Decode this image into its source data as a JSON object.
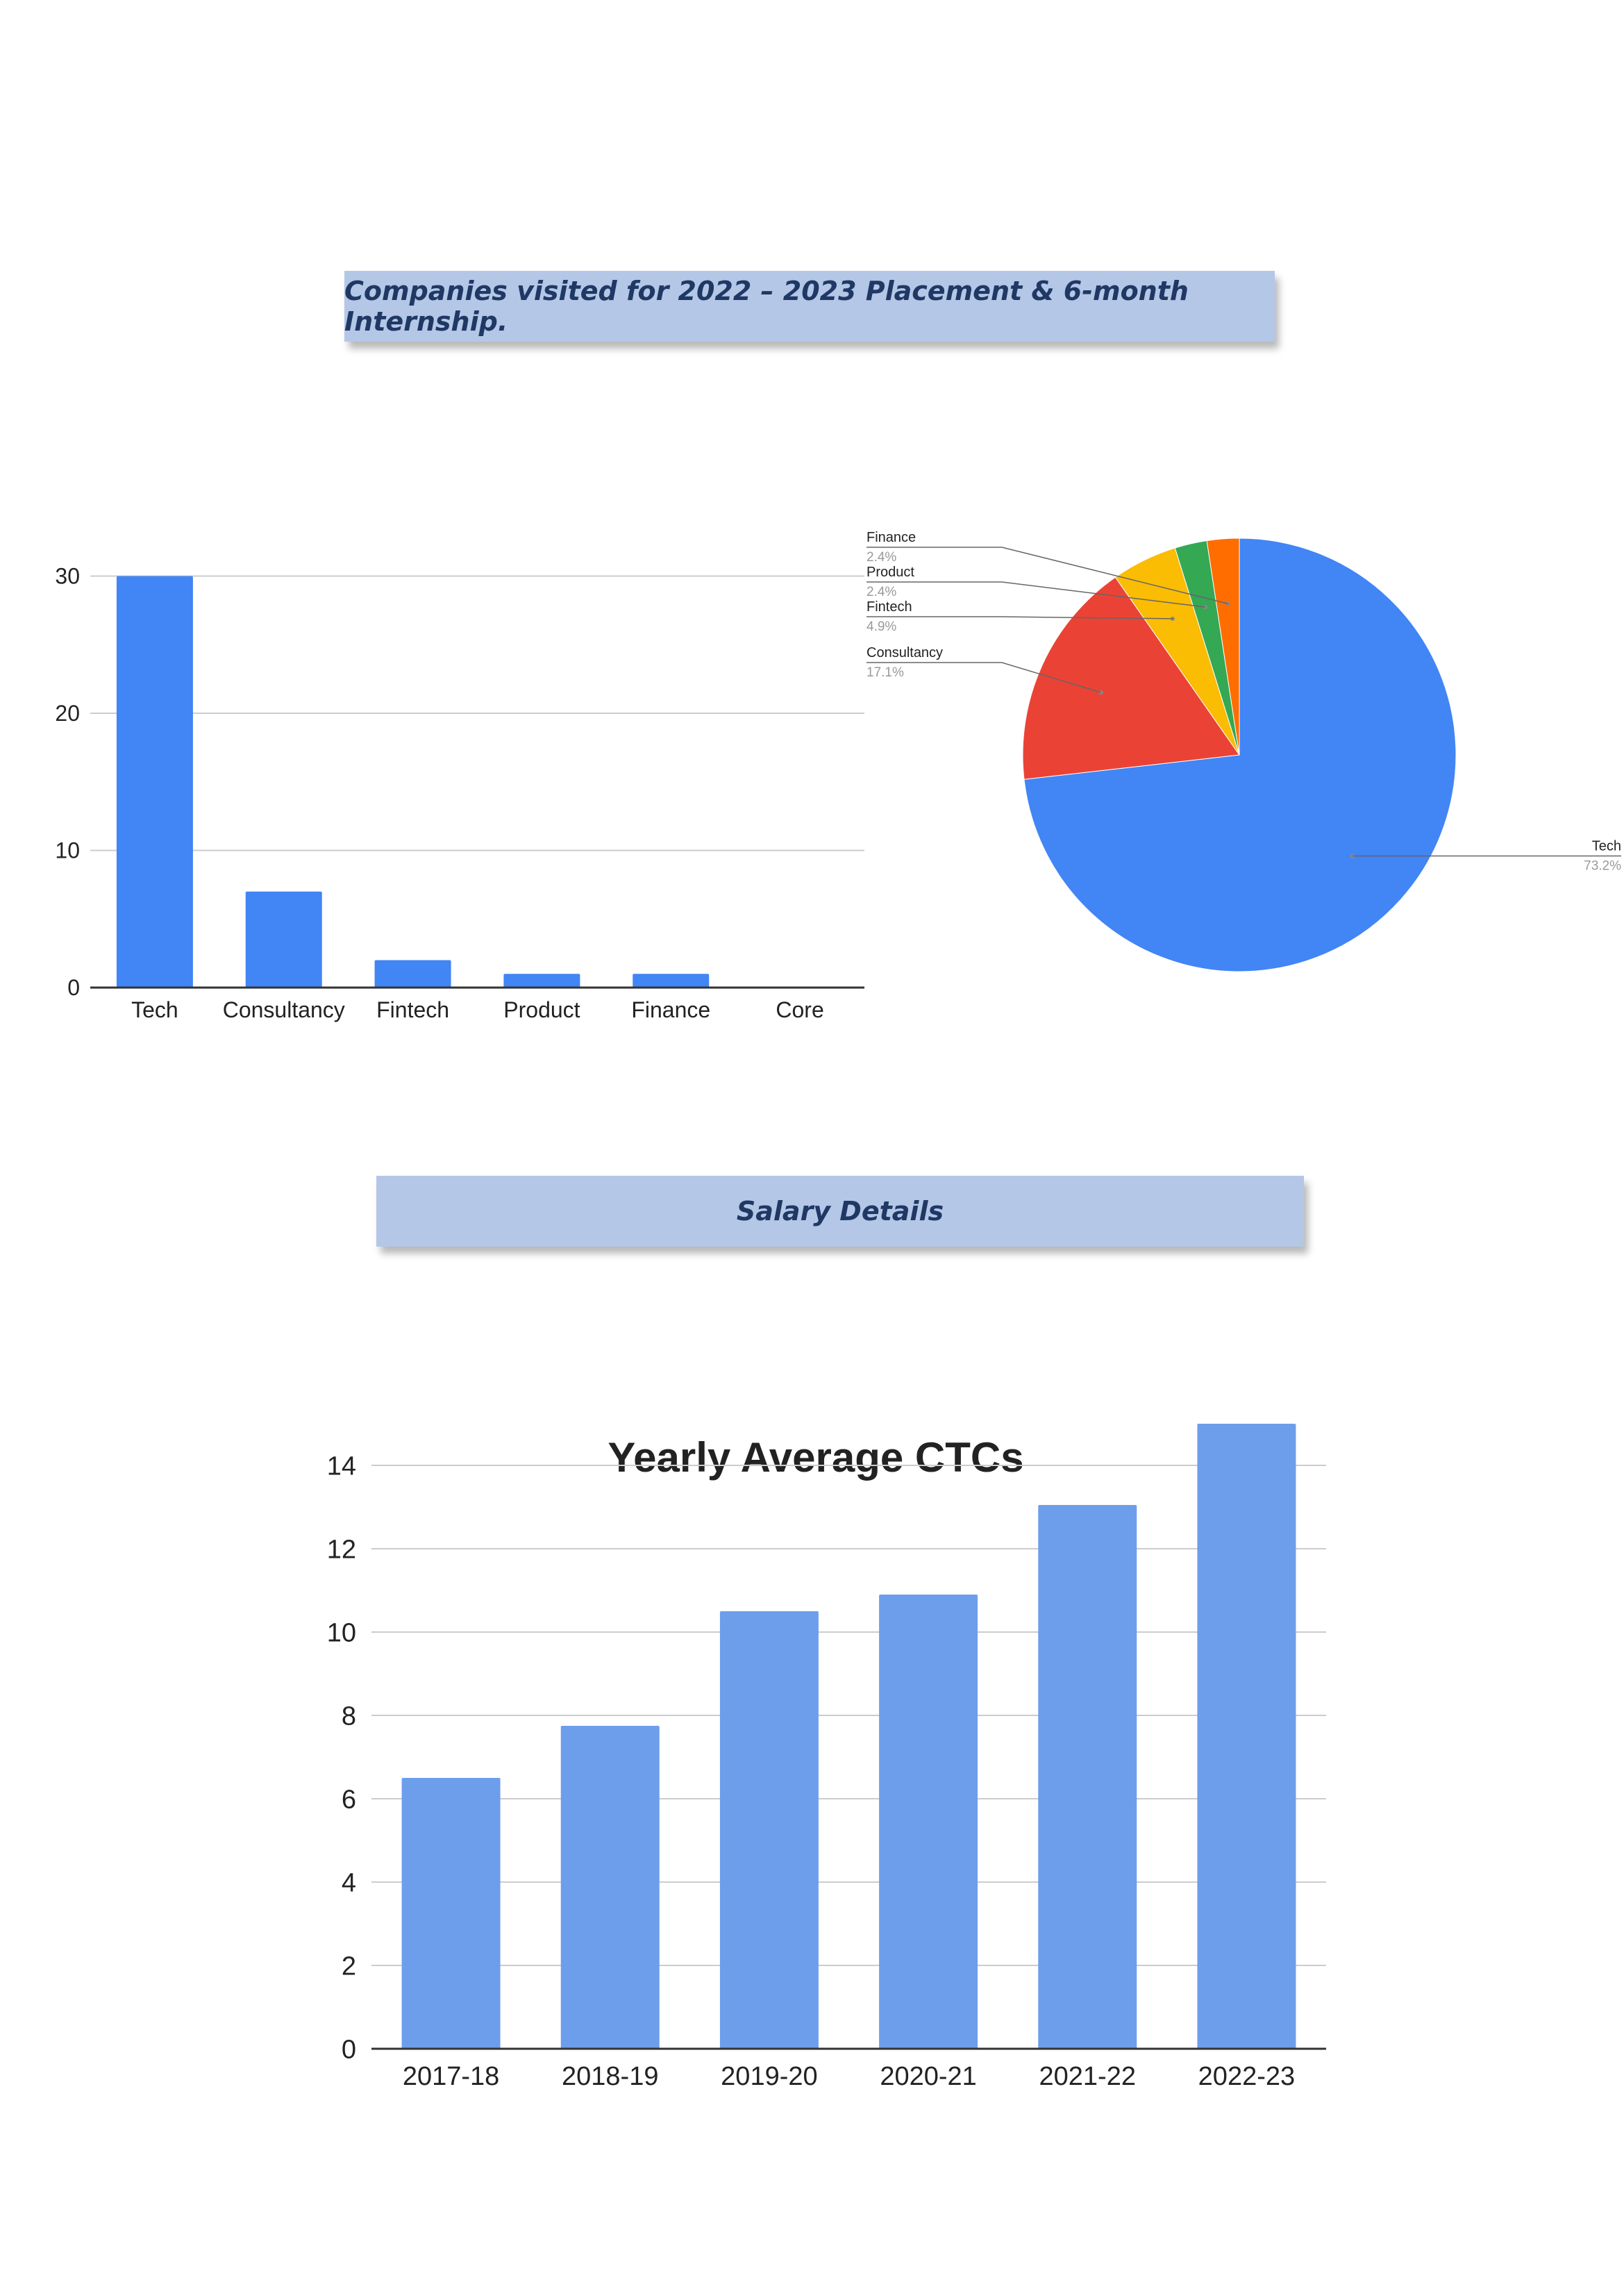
{
  "banners": {
    "companies": "Companies visited for 2022 – 2023 Placement & 6-month Internship.",
    "salary": "Salary Details"
  },
  "chart_data": [
    {
      "type": "bar",
      "title": "",
      "categories": [
        "Tech",
        "Consultancy",
        "Fintech",
        "Product",
        "Finance",
        "Core"
      ],
      "values": [
        30,
        7,
        2,
        1,
        1,
        0
      ],
      "yticks": [
        0,
        10,
        20,
        30
      ],
      "ylim": [
        0,
        32
      ],
      "grid": true,
      "color": "#4285f4"
    },
    {
      "type": "pie",
      "title": "",
      "slices": [
        {
          "label": "Tech",
          "value": 73.2,
          "pct": "73.2%",
          "color": "#4285f4"
        },
        {
          "label": "Consultancy",
          "value": 17.1,
          "pct": "17.1%",
          "color": "#ea4335"
        },
        {
          "label": "Fintech",
          "value": 4.9,
          "pct": "4.9%",
          "color": "#fbbc04"
        },
        {
          "label": "Product",
          "value": 2.4,
          "pct": "2.4%",
          "color": "#34a853"
        },
        {
          "label": "Finance",
          "value": 2.4,
          "pct": "2.4%",
          "color": "#ff6d01"
        }
      ],
      "legend": "callout labels"
    },
    {
      "type": "bar",
      "title": "Yearly Average CTCs",
      "categories": [
        "2017-18",
        "2018-19",
        "2019-20",
        "2020-21",
        "2021-22",
        "2022-23"
      ],
      "values": [
        6.5,
        7.75,
        10.5,
        10.9,
        13.05,
        15.0
      ],
      "yticks": [
        0,
        2,
        4,
        6,
        8,
        10,
        12,
        14
      ],
      "ylim": [
        0,
        15.5
      ],
      "grid": true,
      "color": "#6d9eeb"
    }
  ]
}
